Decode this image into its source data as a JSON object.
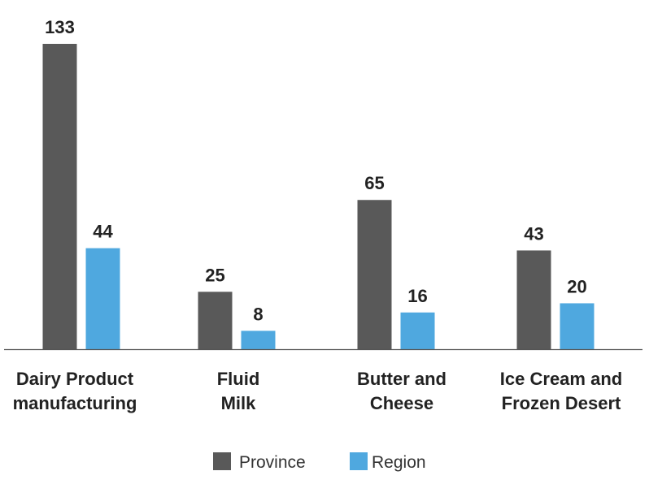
{
  "chart_data": {
    "type": "bar",
    "title": "",
    "xlabel": "",
    "ylabel": "",
    "ylim": [
      0,
      133
    ],
    "grid": false,
    "legend_position": "bottom-center",
    "categories": [
      [
        "Dairy Product",
        "manufacturing"
      ],
      [
        "Fluid",
        "Milk"
      ],
      [
        "Butter and",
        "Cheese"
      ],
      [
        "Ice Cream and",
        "Frozen Desert"
      ]
    ],
    "series": [
      {
        "name": "Province",
        "color": "#595959",
        "values": [
          133,
          25,
          65,
          43
        ]
      },
      {
        "name": "Region",
        "color": "#4fa8df",
        "values": [
          44,
          8,
          16,
          20
        ]
      }
    ]
  }
}
